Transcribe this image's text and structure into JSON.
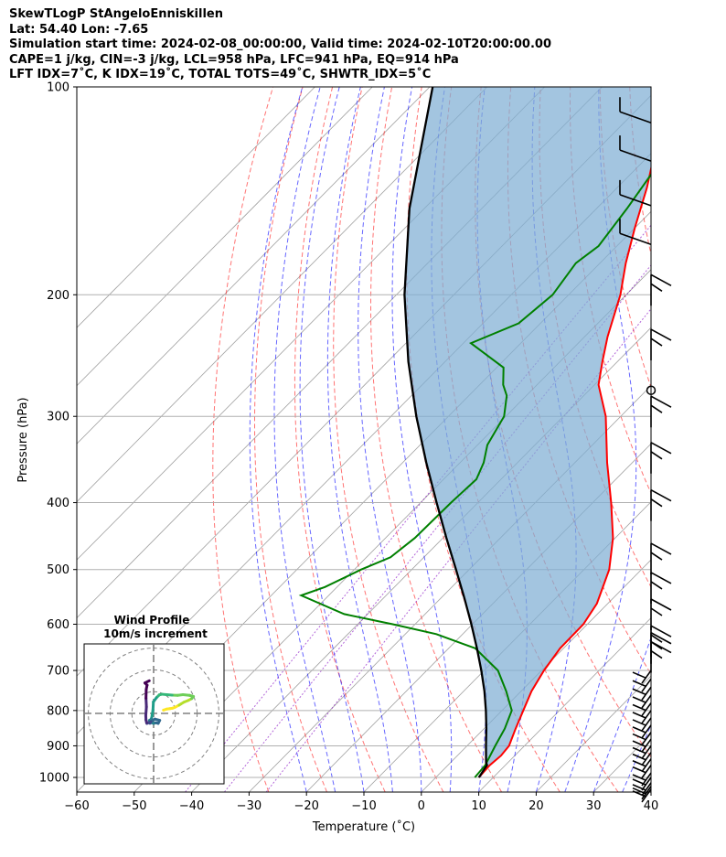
{
  "header": {
    "line1": "SkewTLogP StAngeloEnniskillen",
    "line2": "Lat: 54.40   Lon: -7.65",
    "line3": "Simulation start time: 2024-02-08_00:00:00, Valid time: 2024-02-10T20:00:00.00",
    "line4": "CAPE=1 j/kg, CIN=-3 j/kg, LCL=958 hPa, LFC=941 hPa, EQ=914 hPa",
    "line5": "LFT IDX=7˚C, K IDX=19˚C, TOTAL TOTS=49˚C, SHWTR_IDX=5˚C"
  },
  "chart_data": {
    "type": "skew-t log-p",
    "xlabel": "Temperature (˚C)",
    "ylabel": "Pressure (hPa)",
    "xlim": [
      -60,
      40
    ],
    "ylim": [
      1050,
      100
    ],
    "x_ticks": [
      "−60",
      "−50",
      "−40",
      "−30",
      "−20",
      "−10",
      "0",
      "10",
      "20",
      "30",
      "40"
    ],
    "y_ticks": [
      "100",
      "200",
      "300",
      "400",
      "500",
      "600",
      "700",
      "800",
      "900",
      "1000"
    ],
    "colors": {
      "temperature": "#ff0000",
      "dewpoint": "#008000",
      "parcel": "#000000",
      "cape_fill": "#7fafd4",
      "dry_adiabats": "#ff0000",
      "moist_adiabats": "#0000ff",
      "mixing_ratio": "#8000c0",
      "isotherms": "#808080"
    },
    "series": [
      {
        "key": "temperature",
        "points": [
          [
            1000,
            7.5
          ],
          [
            960,
            7.3
          ],
          [
            930,
            7.6
          ],
          [
            900,
            7.3
          ],
          [
            850,
            5.5
          ],
          [
            800,
            3.7
          ],
          [
            750,
            1.8
          ],
          [
            700,
            0.4
          ],
          [
            650,
            -0.6
          ],
          [
            600,
            -0.7
          ],
          [
            560,
            -1.9
          ],
          [
            500,
            -5.6
          ],
          [
            450,
            -10.4
          ],
          [
            400,
            -16.8
          ],
          [
            350,
            -24.4
          ],
          [
            300,
            -32.6
          ],
          [
            270,
            -39.3
          ],
          [
            250,
            -42.6
          ],
          [
            230,
            -46.0
          ],
          [
            200,
            -51.0
          ],
          [
            180,
            -55.5
          ],
          [
            160,
            -60.0
          ],
          [
            140,
            -64.8
          ],
          [
            120,
            -71.0
          ],
          [
            100,
            -79.0
          ]
        ]
      },
      {
        "key": "dewpoint",
        "points": [
          [
            1000,
            6.8
          ],
          [
            960,
            6.5
          ],
          [
            900,
            4.9
          ],
          [
            850,
            3.6
          ],
          [
            800,
            1.7
          ],
          [
            750,
            -2.6
          ],
          [
            700,
            -7.6
          ],
          [
            650,
            -15.4
          ],
          [
            620,
            -24.6
          ],
          [
            600,
            -33.9
          ],
          [
            580,
            -44.1
          ],
          [
            545,
            -54.8
          ],
          [
            530,
            -52.1
          ],
          [
            500,
            -48.8
          ],
          [
            480,
            -45.8
          ],
          [
            450,
            -44.9
          ],
          [
            400,
            -44.7
          ],
          [
            370,
            -44.3
          ],
          [
            350,
            -45.9
          ],
          [
            330,
            -48.3
          ],
          [
            300,
            -50.3
          ],
          [
            280,
            -53.4
          ],
          [
            270,
            -55.9
          ],
          [
            255,
            -58.8
          ],
          [
            235,
            -68.7
          ],
          [
            220,
            -63.8
          ],
          [
            200,
            -62.8
          ],
          [
            180,
            -64.2
          ],
          [
            170,
            -63.2
          ],
          [
            150,
            -64.7
          ],
          [
            130,
            -66.8
          ],
          [
            100,
            -72.5
          ]
        ]
      },
      {
        "key": "parcel",
        "points": [
          [
            1000,
            7.5
          ],
          [
            960,
            6.8
          ],
          [
            950,
            6.1
          ],
          [
            900,
            3.3
          ],
          [
            850,
            0.4
          ],
          [
            800,
            -2.8
          ],
          [
            750,
            -6.4
          ],
          [
            700,
            -10.5
          ],
          [
            650,
            -15.1
          ],
          [
            600,
            -20.2
          ],
          [
            550,
            -25.9
          ],
          [
            500,
            -32.3
          ],
          [
            450,
            -39.4
          ],
          [
            400,
            -47.2
          ],
          [
            350,
            -55.9
          ],
          [
            300,
            -65.6
          ],
          [
            250,
            -76.4
          ],
          [
            200,
            -88.6
          ],
          [
            150,
            -102.6
          ],
          [
            100,
            -119.5
          ]
        ]
      }
    ],
    "wind_barbs": {
      "pressures": [
        1040,
        1030,
        1018,
        1000,
        985,
        960,
        940,
        920,
        900,
        880,
        860,
        840,
        820,
        800,
        780,
        760,
        740,
        720,
        700,
        680,
        660,
        645,
        590,
        540,
        490,
        410,
        350,
        300,
        275,
        240,
        200,
        165,
        145,
        125,
        110
      ]
    },
    "inset": {
      "title": "Wind Profile",
      "subtitle": "10m/s increment",
      "rings": [
        10,
        20,
        30
      ],
      "hodograph_points": [
        [
          4.5,
          -1.5
        ],
        [
          6.0,
          -2.0
        ],
        [
          7.5,
          -2.2
        ],
        [
          8.8,
          -2.4
        ],
        [
          10.0,
          -2.9
        ],
        [
          11.7,
          -3.8
        ],
        [
          12.5,
          -4.3
        ],
        [
          14.0,
          -5.2
        ],
        [
          16.0,
          -6.0
        ],
        [
          17.5,
          -6.8
        ],
        [
          18.3,
          -7.8
        ],
        [
          16.5,
          -8.3
        ],
        [
          13.5,
          -8.6
        ],
        [
          11.0,
          -8.3
        ],
        [
          8.5,
          -8.4
        ],
        [
          6.0,
          -8.6
        ],
        [
          3.9,
          -8.8
        ],
        [
          2.6,
          -8.5
        ],
        [
          1.3,
          -7.2
        ],
        [
          -0.1,
          -5.3
        ],
        [
          -0.3,
          -1.6
        ],
        [
          -0.7,
          1.0
        ],
        [
          -1.0,
          2.4
        ],
        [
          -1.5,
          3.0
        ],
        [
          -1.9,
          3.2
        ],
        [
          -0.9,
          4.3
        ],
        [
          0.0,
          4.6
        ],
        [
          1.1,
          4.3
        ],
        [
          2.1,
          4.6
        ],
        [
          2.8,
          3.2
        ],
        [
          0.6,
          2.6
        ],
        [
          -1.3,
          3.8
        ],
        [
          -1.7,
          4.5
        ],
        [
          -1.4,
          4.0
        ],
        [
          -2.5,
          4.3
        ],
        [
          -3.1,
          4.6
        ],
        [
          -3.2,
          4.3
        ],
        [
          -3.5,
          3.0
        ],
        [
          -3.6,
          1.0
        ],
        [
          -3.3,
          -3.0
        ],
        [
          -3.5,
          -7.0
        ],
        [
          -3.4,
          -11.0
        ],
        [
          -3.0,
          -13.0
        ],
        [
          -4.0,
          -14.0
        ],
        [
          -2.0,
          -15.0
        ]
      ]
    }
  }
}
